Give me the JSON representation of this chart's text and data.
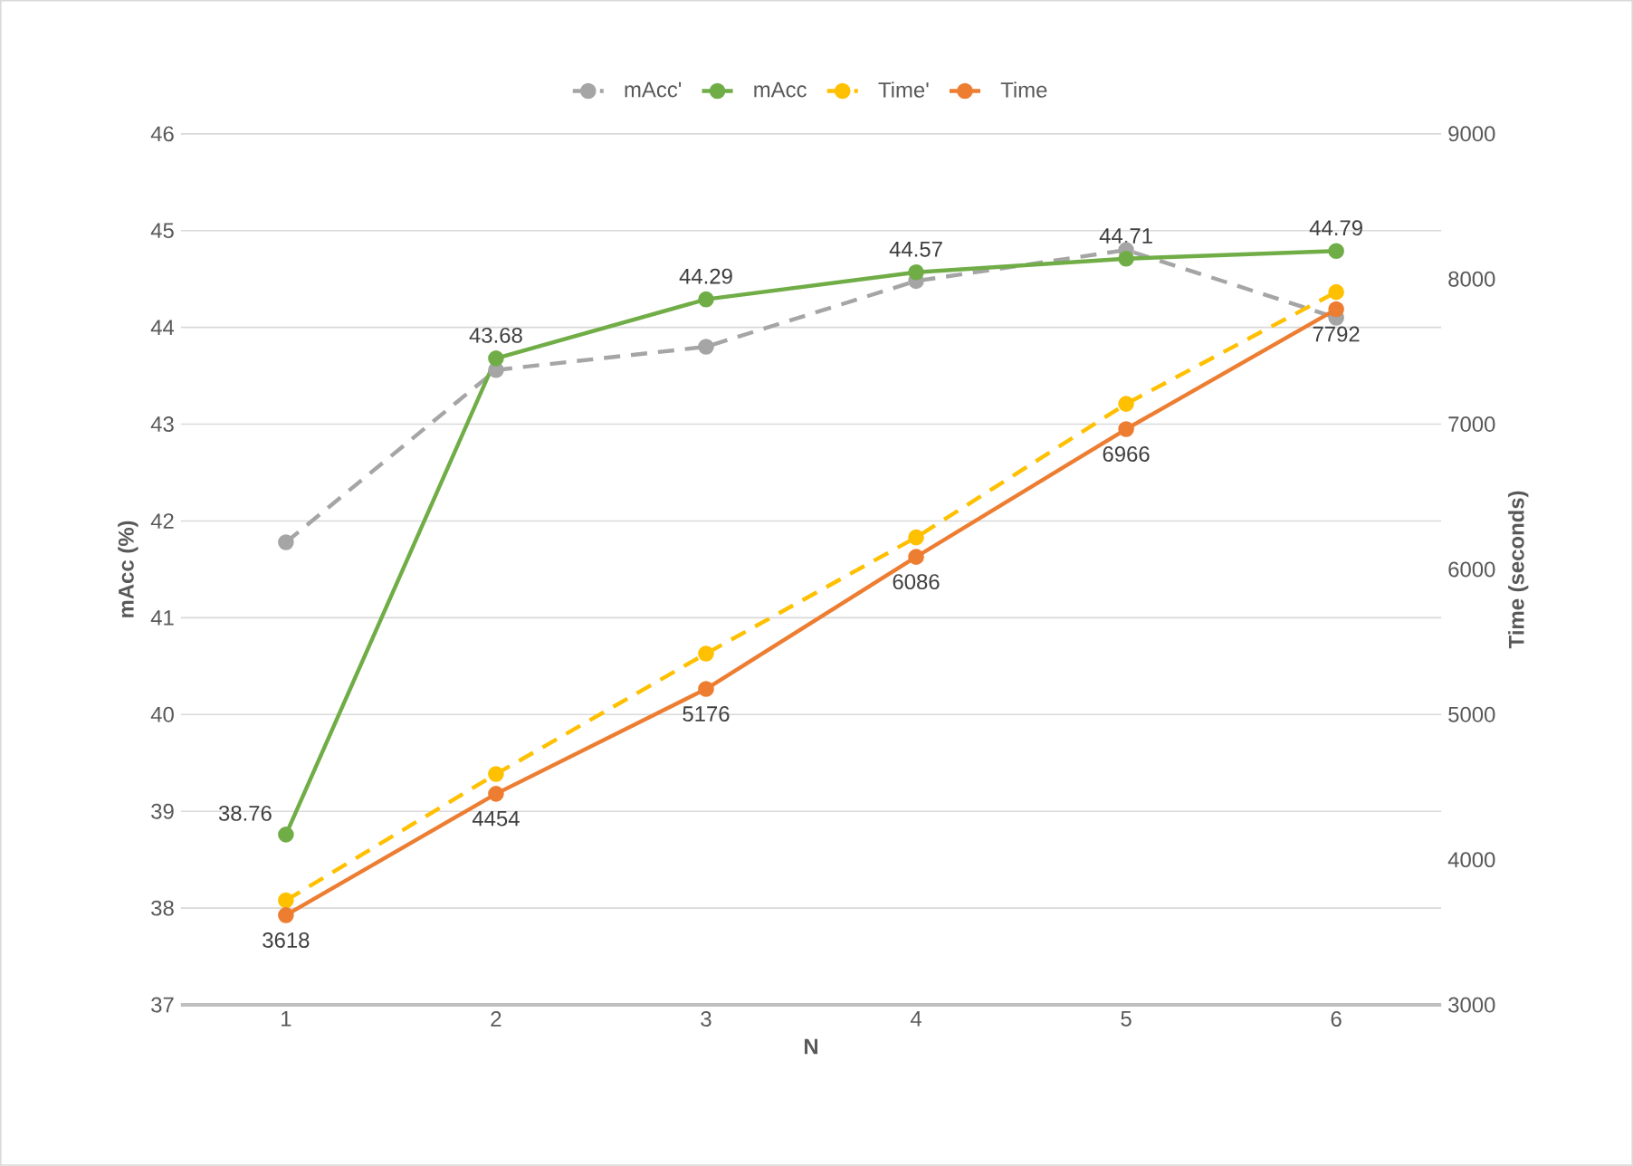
{
  "chart_data": {
    "type": "line",
    "xlabel": "N",
    "ylabel": "mAcc (%)",
    "y2label": "Time (seconds)",
    "categories": [
      "1",
      "2",
      "3",
      "4",
      "5",
      "6"
    ],
    "ylim": [
      37,
      46
    ],
    "yticks": [
      37,
      38,
      39,
      40,
      41,
      42,
      43,
      44,
      45,
      46
    ],
    "y2lim": [
      3000,
      9000
    ],
    "y2ticks": [
      3000,
      4000,
      5000,
      6000,
      7000,
      8000,
      9000
    ],
    "grid": "y",
    "legend": "top",
    "marker": "circle",
    "series": [
      {
        "name": "mAcc'",
        "color": "#a5a5a5",
        "line_style": "dashed",
        "values": [
          41.78,
          43.56,
          43.8,
          44.48,
          44.8,
          44.1
        ]
      },
      {
        "name": "mAcc",
        "color": "#70ad47",
        "line_style": "solid",
        "values": [
          38.76,
          43.68,
          44.29,
          44.57,
          44.71,
          44.79
        ],
        "value_labels": [
          "38.76",
          "43.68",
          "44.29",
          "44.57",
          "44.71",
          "44.79"
        ]
      },
      {
        "name": "Time'",
        "color": "#ffc000",
        "line_style": "dashed",
        "axis": "y2",
        "values": [
          3720,
          4590,
          5420,
          6220,
          7140,
          7910
        ]
      },
      {
        "name": "Time",
        "color": "#ed7d31",
        "line_style": "solid",
        "axis": "y2",
        "values": [
          3618,
          4454,
          5176,
          6086,
          6966,
          7792
        ],
        "value_labels": [
          "3618",
          "4454",
          "5176",
          "6086",
          "6966",
          "7792"
        ]
      }
    ]
  }
}
